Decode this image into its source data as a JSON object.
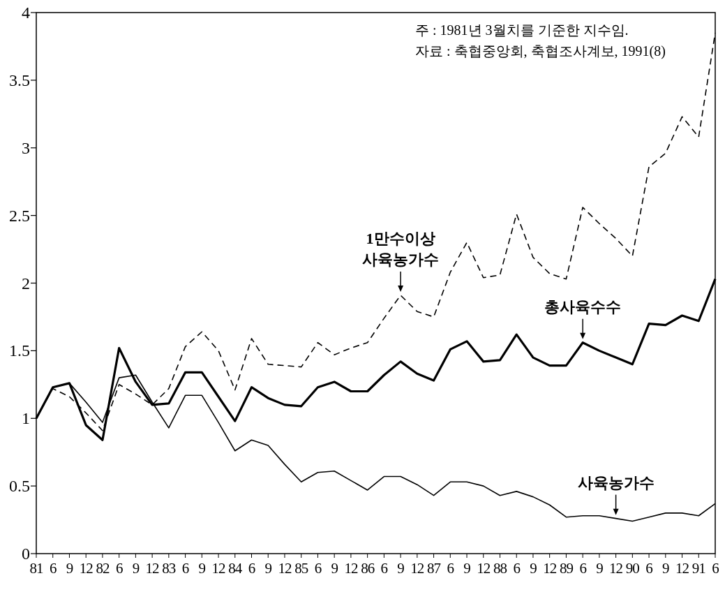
{
  "chart_data": {
    "type": "line",
    "categories": [
      "81",
      "6",
      "9",
      "12",
      "82",
      "6",
      "9",
      "12",
      "83",
      "6",
      "9",
      "12",
      "84",
      "6",
      "9",
      "12",
      "85",
      "6",
      "9",
      "12",
      "86",
      "6",
      "9",
      "12",
      "87",
      "6",
      "9",
      "12",
      "88",
      "6",
      "9",
      "12",
      "89",
      "6",
      "9",
      "12",
      "90",
      "6",
      "9",
      "12",
      "91",
      "6"
    ],
    "series": [
      {
        "name": "1만수이상\n사육농가수",
        "color": "#000000",
        "line_style": "dashed",
        "values": [
          1.0,
          1.22,
          1.16,
          1.04,
          0.91,
          1.25,
          1.18,
          1.1,
          1.22,
          1.53,
          1.64,
          1.5,
          1.21,
          1.59,
          1.4,
          1.39,
          1.38,
          1.56,
          1.47,
          1.52,
          1.56,
          1.74,
          1.91,
          1.79,
          1.75,
          2.08,
          2.3,
          2.04,
          2.06,
          2.51,
          2.19,
          2.07,
          2.03,
          2.56,
          2.44,
          2.33,
          2.2,
          2.86,
          2.96,
          3.23,
          3.08,
          3.85
        ]
      },
      {
        "name": "총사육수수",
        "color": "#000000",
        "line_style": "solid",
        "values": [
          1.0,
          1.23,
          1.26,
          0.95,
          0.84,
          1.52,
          1.27,
          1.1,
          1.11,
          1.34,
          1.34,
          1.16,
          0.98,
          1.23,
          1.15,
          1.1,
          1.09,
          1.23,
          1.27,
          1.2,
          1.2,
          1.32,
          1.42,
          1.33,
          1.28,
          1.51,
          1.57,
          1.42,
          1.43,
          1.62,
          1.45,
          1.39,
          1.39,
          1.56,
          1.5,
          1.45,
          1.4,
          1.7,
          1.69,
          1.76,
          1.72,
          2.03
        ]
      },
      {
        "name": "사육농가수",
        "color": "#000000",
        "line_style": "solid",
        "values": [
          1.0,
          1.23,
          1.26,
          1.12,
          0.97,
          1.3,
          1.32,
          1.12,
          0.93,
          1.17,
          1.17,
          0.97,
          0.76,
          0.84,
          0.8,
          0.66,
          0.53,
          0.6,
          0.61,
          0.54,
          0.47,
          0.57,
          0.57,
          0.51,
          0.43,
          0.53,
          0.53,
          0.5,
          0.43,
          0.46,
          0.42,
          0.36,
          0.27,
          0.28,
          0.28,
          0.26,
          0.24,
          0.27,
          0.3,
          0.3,
          0.28,
          0.37
        ]
      }
    ],
    "ylim": [
      0,
      4
    ],
    "yticks": [
      0,
      0.5,
      1,
      1.5,
      2,
      2.5,
      3,
      3.5,
      4
    ],
    "grid": false,
    "legend": false,
    "marker": "none",
    "annotations": [
      "주 : 1981년 3월치를 기준한 지수임.",
      "자료 : 축협중앙회, 축협조사계보, 1991(8)"
    ]
  }
}
